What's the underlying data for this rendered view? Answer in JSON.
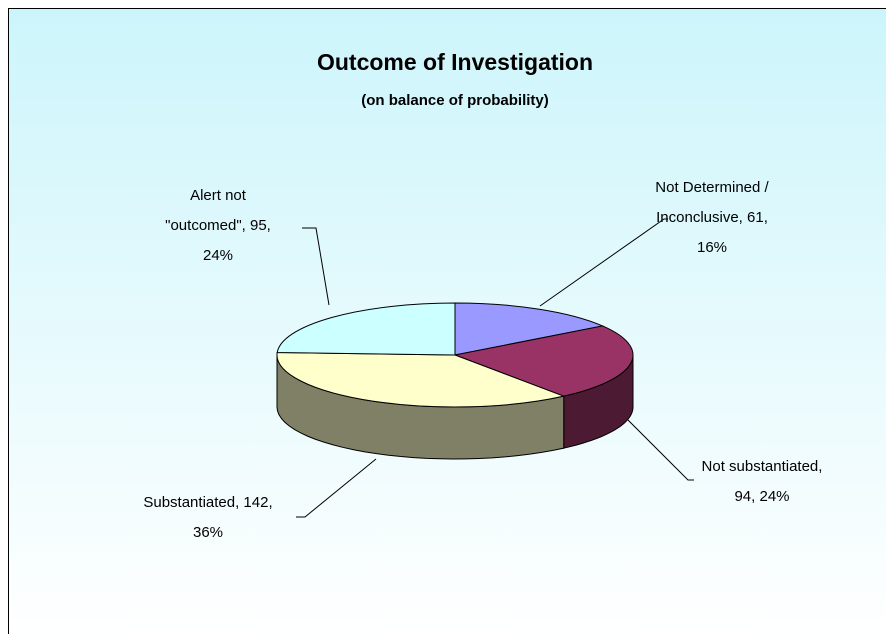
{
  "chart_data": {
    "type": "pie3d",
    "title": "Outcome of Investigation",
    "subtitle": "(on balance of probability)",
    "values": [
      61,
      94,
      142,
      95
    ],
    "value_labels": [
      [
        "Not Determined /",
        "Inconclusive, 61,",
        "16%"
      ],
      [
        "Not substantiated,",
        "94, 24%"
      ],
      [
        "Substantiated, 142,",
        "36%"
      ],
      [
        "Alert not",
        "\"outcomed\", 95,",
        "24%"
      ]
    ],
    "colors": [
      "#9999ff",
      "#993366",
      "#ffffcc",
      "#ccffff"
    ],
    "side_colors": [
      "#4d4d80",
      "#4d1a33",
      "#808066",
      "#668080"
    ]
  }
}
